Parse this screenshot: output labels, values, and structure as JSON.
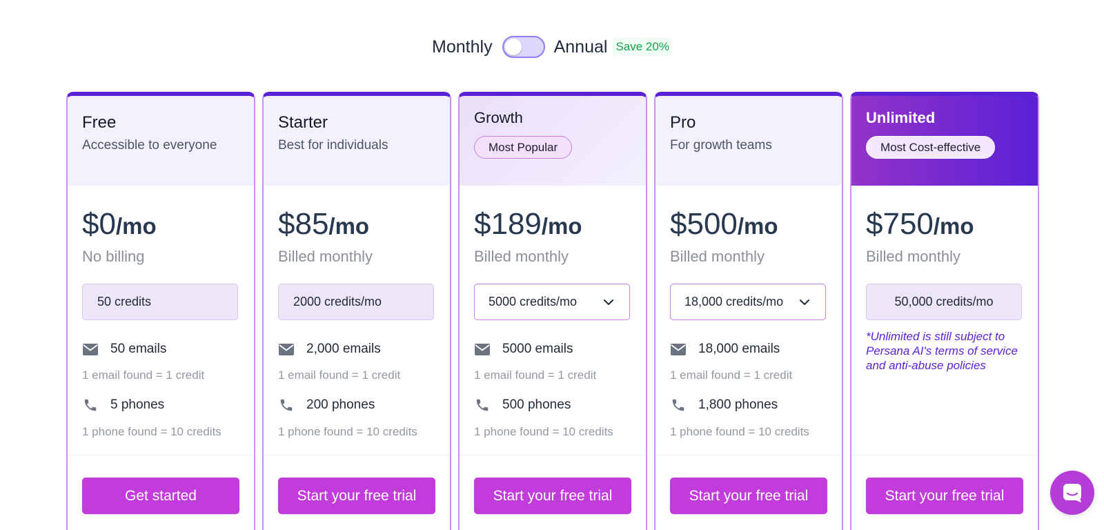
{
  "billing": {
    "monthly_label": "Monthly",
    "annual_label": "Annual",
    "save_badge": "Save 20%",
    "toggle_state": "monthly"
  },
  "colors": {
    "accent": "#c23cdb",
    "brand_purple": "#5b21d6",
    "card_border": "#cc8ef2",
    "save_green": "#16a34a"
  },
  "plans": [
    {
      "name": "Free",
      "subtitle": "Accessible to everyone",
      "price": "$0",
      "unit": "/mo",
      "billing_note": "No billing",
      "credits": "50 credits",
      "emails": "50 emails",
      "email_note": "1 email found = 1 credit",
      "phones": "5 phones",
      "phone_note": "1 phone found = 10 credits",
      "cta": "Get started"
    },
    {
      "name": "Starter",
      "subtitle": "Best for individuals",
      "price": "$85",
      "unit": "/mo",
      "billing_note": "Billed monthly",
      "credits": "2000 credits/mo",
      "emails": "2,000 emails",
      "email_note": "1 email found = 1 credit",
      "phones": "200 phones",
      "phone_note": "1 phone found = 10 credits",
      "cta": "Start your free trial"
    },
    {
      "name": "Growth",
      "badge": "Most Popular",
      "price": "$189",
      "unit": "/mo",
      "billing_note": "Billed monthly",
      "credits": "5000 credits/mo",
      "emails": "5000 emails",
      "email_note": "1 email found = 1 credit",
      "phones": "500 phones",
      "phone_note": "1 phone found = 10 credits",
      "cta": "Start your free trial"
    },
    {
      "name": "Pro",
      "subtitle": "For growth teams",
      "price": "$500",
      "unit": "/mo",
      "billing_note": "Billed monthly",
      "credits": "18,000 credits/mo",
      "emails": "18,000 emails",
      "email_note": "1 email found = 1 credit",
      "phones": "1,800 phones",
      "phone_note": "1 phone found = 10 credits",
      "cta": "Start your free trial"
    },
    {
      "name": "Unlimited",
      "badge": "Most Cost-effective",
      "price": "$750",
      "unit": "/mo",
      "billing_note": "Billed monthly",
      "credits": "50,000 credits/mo",
      "disclaimer": "*Unlimited is still subject to Persana AI's terms of service and anti-abuse policies",
      "cta": "Start your free trial"
    }
  ],
  "icons": {
    "email": "envelope-icon",
    "phone": "phone-icon",
    "dropdown": "chevron-down-icon",
    "chat": "chat-icon"
  }
}
